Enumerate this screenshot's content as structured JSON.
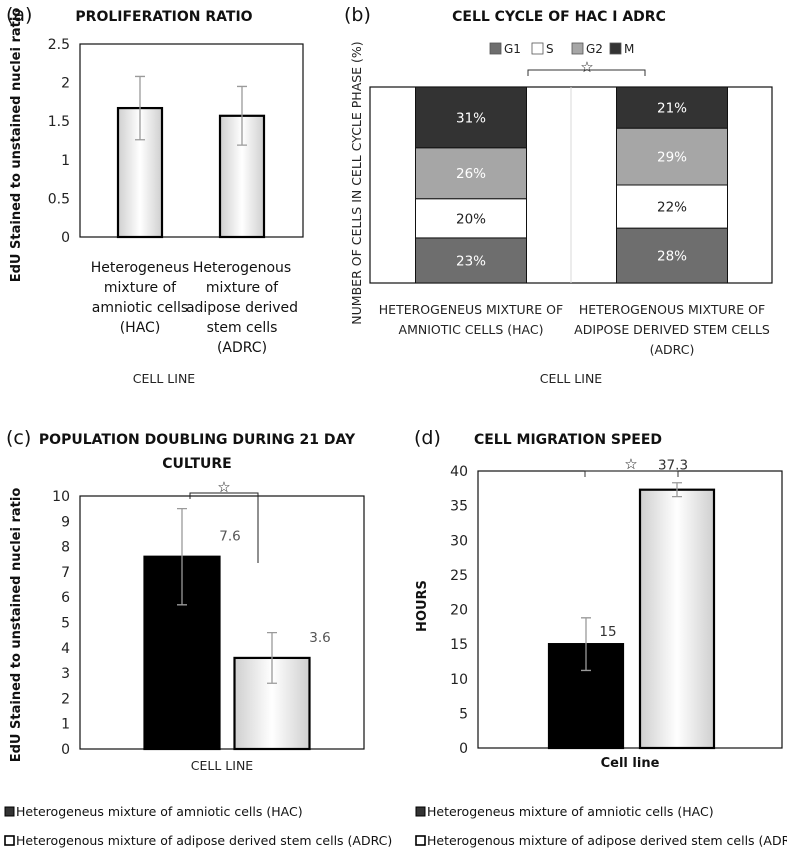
{
  "colors": {
    "black_bar": "#000000",
    "white_bar": "#ffffff",
    "G1": "#6e6e6e",
    "S": "#ffffff",
    "G2": "#a6a6a6",
    "M": "#333333",
    "error_bar": "#9a9a9a"
  },
  "significance_marker": "☆",
  "chart_data": [
    {
      "panel": "(a)",
      "type": "bar",
      "title": "PROLIFERATION RATIO",
      "ylabel": "EdU Stained to unstained nuclei ratio",
      "xlabel": "CELL LINE",
      "ylim": [
        0,
        2.5
      ],
      "yticks": [
        "0",
        "0.5",
        "1",
        "1.5",
        "2",
        "2.5"
      ],
      "categories": [
        [
          "Heterogeneus",
          "mixture of",
          "amniotic cells",
          "(HAC)"
        ],
        [
          "Heterogenous",
          "mixture of",
          "adipose derived",
          "stem cells",
          "(ADRC)"
        ]
      ],
      "values": [
        1.67,
        1.57
      ],
      "errors": [
        0.41,
        0.38
      ],
      "grid": false
    },
    {
      "panel": "(b)",
      "type": "bar",
      "stacked": true,
      "title": "CELL CYCLE OF HAC I ADRC",
      "ylabel": "NUMBER OF CELLS IN CELL CYCLE PHASE (%)",
      "xlabel": "CELL LINE",
      "legend": [
        "G1",
        "S",
        "G2",
        "M"
      ],
      "legend_position": "top",
      "categories": [
        [
          "HETEROGENEUS MIXTURE OF",
          "AMNIOTIC CELLS (HAC)"
        ],
        [
          "HETEROGENOUS MIXTURE OF",
          "ADIPOSE DERIVED STEM CELLS",
          "(ADRC)"
        ]
      ],
      "series": [
        {
          "name": "G1",
          "values": [
            23,
            28
          ],
          "labels": [
            "23%",
            "28%"
          ]
        },
        {
          "name": "S",
          "values": [
            20,
            22
          ],
          "labels": [
            "20%",
            "22%"
          ]
        },
        {
          "name": "G2",
          "values": [
            26,
            29
          ],
          "labels": [
            "26%",
            "29%"
          ]
        },
        {
          "name": "M",
          "values": [
            31,
            21
          ],
          "labels": [
            "31%",
            "21%"
          ]
        }
      ],
      "significance": true
    },
    {
      "panel": "(c)",
      "type": "bar",
      "title": [
        "POPULATION DOUBLING DURING 21 DAY",
        "CULTURE"
      ],
      "ylabel": "EdU Stained to unstained nuclei ratio",
      "xlabel": "CELL LINE",
      "ylim": [
        0,
        10
      ],
      "yticks": [
        "0",
        "1",
        "2",
        "3",
        "4",
        "5",
        "6",
        "7",
        "8",
        "9",
        "10"
      ],
      "values": [
        7.6,
        3.6
      ],
      "value_labels": [
        "7.6",
        "3.6"
      ],
      "errors": [
        1.9,
        1.0
      ],
      "legend": [
        "Heterogeneus mixture of amniotic cells (HAC)",
        "Heterogenous mixture of adipose derived stem cells (ADRC)"
      ],
      "significance": true
    },
    {
      "panel": "(d)",
      "type": "bar",
      "title": "CELL MIGRATION SPEED",
      "ylabel": "HOURS",
      "xlabel": "Cell line",
      "ylim": [
        0,
        40
      ],
      "yticks": [
        "0",
        "5",
        "10",
        "15",
        "20",
        "25",
        "30",
        "35",
        "40"
      ],
      "values": [
        15,
        37.3
      ],
      "value_labels": [
        "15",
        "37.3"
      ],
      "errors": [
        3.8,
        1.0
      ],
      "legend": [
        "Heterogeneus mixture of amniotic cells (HAC)",
        "Heterogenous mixture of adipose derived stem cells (ADRC)"
      ],
      "significance": true
    }
  ]
}
